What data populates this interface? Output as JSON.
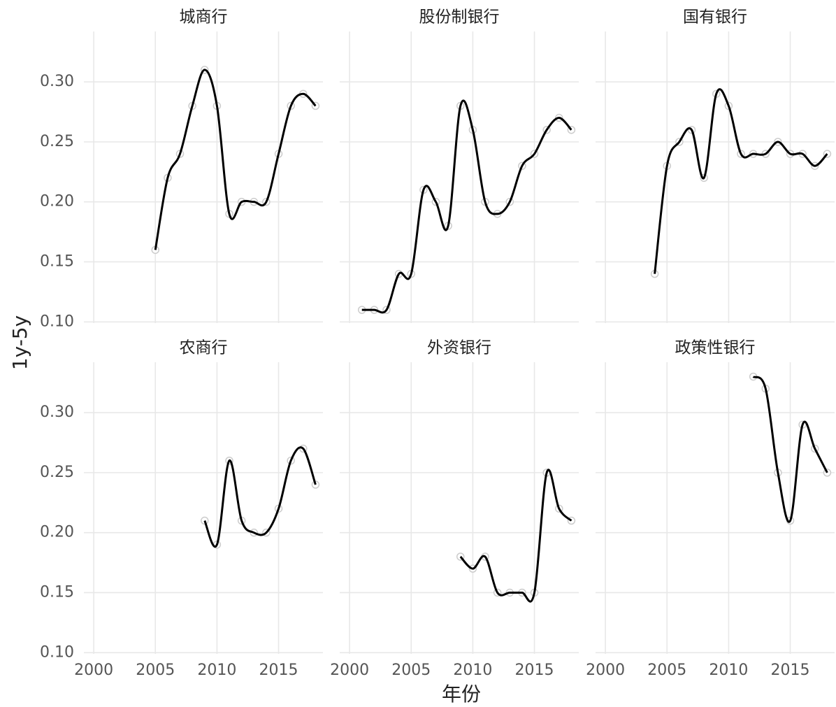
{
  "chart_data": {
    "type": "line",
    "x_label": "年份",
    "y_label": "1y-5y",
    "color": "#000000",
    "grid": true,
    "xlim": [
      1999.2,
      2018.6
    ],
    "xticks": [
      2000,
      2005,
      2010,
      2015
    ],
    "ylim": [
      0.099,
      0.342
    ],
    "yticks": [
      {
        "value": 0.1,
        "label": "0.10"
      },
      0.15,
      {
        "value": 0.2,
        "label": "0.20"
      },
      0.25,
      {
        "value": 0.3,
        "label": "0.30"
      }
    ],
    "facets": [
      {
        "title": "城商行",
        "x": [
          2005,
          2006,
          2007,
          2008,
          2009,
          2010,
          2011,
          2012,
          2013,
          2014,
          2015,
          2016,
          2017,
          2018
        ],
        "values": [
          0.16,
          0.22,
          0.24,
          0.28,
          0.31,
          0.28,
          0.19,
          0.2,
          0.2,
          0.2,
          0.24,
          0.28,
          0.29,
          0.28
        ]
      },
      {
        "title": "股份制银行",
        "x": [
          2001,
          2002,
          2003,
          2004,
          2005,
          2006,
          2007,
          2008,
          2009,
          2010,
          2011,
          2012,
          2013,
          2014,
          2015,
          2016,
          2017,
          2018
        ],
        "values": [
          0.11,
          0.11,
          0.11,
          0.14,
          0.14,
          0.21,
          0.2,
          0.18,
          0.28,
          0.26,
          0.2,
          0.19,
          0.2,
          0.23,
          0.24,
          0.26,
          0.27,
          0.26
        ]
      },
      {
        "title": "国有银行",
        "x": [
          2004,
          2005,
          2006,
          2007,
          2008,
          2009,
          2010,
          2011,
          2012,
          2013,
          2014,
          2015,
          2016,
          2017,
          2018
        ],
        "values": [
          0.14,
          0.23,
          0.25,
          0.26,
          0.22,
          0.29,
          0.28,
          0.24,
          0.24,
          0.24,
          0.25,
          0.24,
          0.24,
          0.23,
          0.24
        ]
      },
      {
        "title": "农商行",
        "x": [
          2009,
          2010,
          2011,
          2012,
          2013,
          2014,
          2015,
          2016,
          2017,
          2018
        ],
        "values": [
          0.21,
          0.19,
          0.26,
          0.21,
          0.2,
          0.2,
          0.22,
          0.26,
          0.27,
          0.24
        ]
      },
      {
        "title": "外资银行",
        "x": [
          2009,
          2010,
          2011,
          2012,
          2013,
          2014,
          2015,
          2016,
          2017,
          2018
        ],
        "values": [
          0.18,
          0.17,
          0.18,
          0.15,
          0.15,
          0.15,
          0.15,
          0.25,
          0.22,
          0.21
        ]
      },
      {
        "title": "政策性银行",
        "x": [
          2012,
          2013,
          2014,
          2015,
          2016,
          2017,
          2018
        ],
        "values": [
          0.33,
          0.32,
          0.25,
          0.21,
          0.29,
          0.27,
          0.25
        ]
      }
    ]
  }
}
